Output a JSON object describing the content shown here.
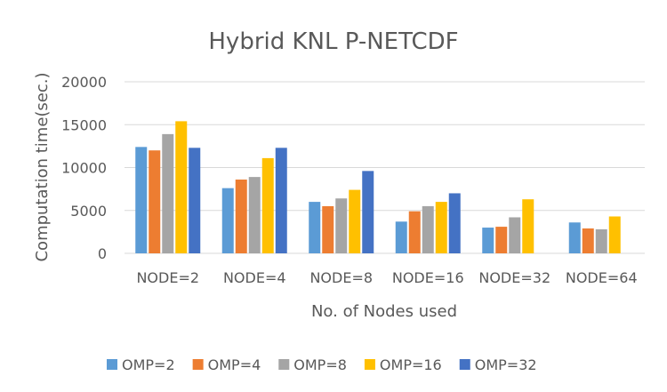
{
  "chart_data": {
    "type": "bar",
    "title": "Hybrid KNL P-NETCDF",
    "xlabel": "No. of Nodes used",
    "ylabel": "Computation time(sec.)",
    "ylim": [
      0,
      20000
    ],
    "yticks": [
      0,
      5000,
      10000,
      15000,
      20000
    ],
    "grid": true,
    "legend_position": "bottom",
    "categories": [
      "NODE=2",
      "NODE=4",
      "NODE=8",
      "NODE=16",
      "NODE=32",
      "NODE=64"
    ],
    "series": [
      {
        "name": "OMP=2",
        "color": "#5b9bd5",
        "values": [
          12400,
          7600,
          6000,
          3700,
          3000,
          3600
        ]
      },
      {
        "name": "OMP=4",
        "color": "#ed7d31",
        "values": [
          12000,
          8600,
          5500,
          4900,
          3100,
          2900
        ]
      },
      {
        "name": "OMP=8",
        "color": "#a5a5a5",
        "values": [
          13900,
          8900,
          6400,
          5500,
          4200,
          2800
        ]
      },
      {
        "name": "OMP=16",
        "color": "#ffc000",
        "values": [
          15400,
          11100,
          7400,
          6000,
          6300,
          4300
        ]
      },
      {
        "name": "OMP=32",
        "color": "#4472c4",
        "values": [
          12300,
          12300,
          9600,
          7000,
          null,
          null
        ]
      }
    ]
  }
}
